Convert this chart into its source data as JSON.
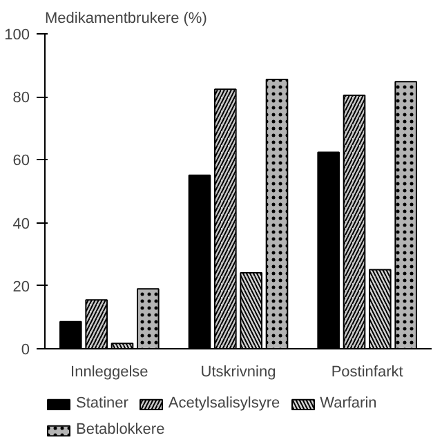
{
  "chart_data": {
    "type": "bar",
    "ylabel": "Medikamentbrukere (%)",
    "categories": [
      "Innleggelse",
      "Utskrivning",
      "Postinfarkt"
    ],
    "series": [
      {
        "name": "Statiner",
        "color": "#000000",
        "values": [
          8.6,
          55.1,
          62.4
        ]
      },
      {
        "name": "Acetylsalisylsyre",
        "color": "#c8c8c8",
        "values": [
          15.5,
          82.4,
          80.5
        ]
      },
      {
        "name": "Warfarin",
        "color": "#d4d4d4",
        "values": [
          1.7,
          24.1,
          25.1
        ]
      },
      {
        "name": "Betablokkere",
        "color": "#b4b4b4",
        "values": [
          19,
          85.5,
          84.8
        ]
      }
    ],
    "ylim": [
      0,
      100
    ],
    "yticks": [
      0,
      20,
      40,
      60,
      80,
      100
    ],
    "grid": false,
    "legend": "bottom"
  }
}
